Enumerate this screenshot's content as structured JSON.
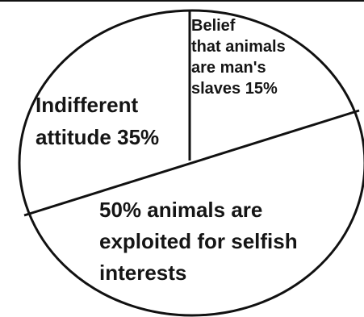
{
  "chart_data": {
    "type": "pie",
    "labels": [
      "Belief that animals are man's slaves 15%",
      "Indifferent attitude 35%",
      "50% animals are exploited for selfish interests"
    ],
    "values": [
      15,
      35,
      50
    ],
    "slices": [
      {
        "label": "Belief that animals are man's slaves 15%",
        "value": 15,
        "lines": [
          "Belief",
          "that animals",
          "are man's",
          "slaves 15%"
        ]
      },
      {
        "label": "Indifferent attitude 35%",
        "value": 35,
        "lines": [
          "Indifferent",
          "attitude 35%"
        ]
      },
      {
        "label": "50% animals are exploited for selfish interests",
        "value": 50,
        "lines": [
          "50% animals are",
          "exploited for selfish",
          "interests"
        ]
      }
    ],
    "title": "",
    "legend": "none"
  },
  "colors": {
    "background": "#ffffff",
    "stroke": "#111111",
    "text": "#151515"
  }
}
